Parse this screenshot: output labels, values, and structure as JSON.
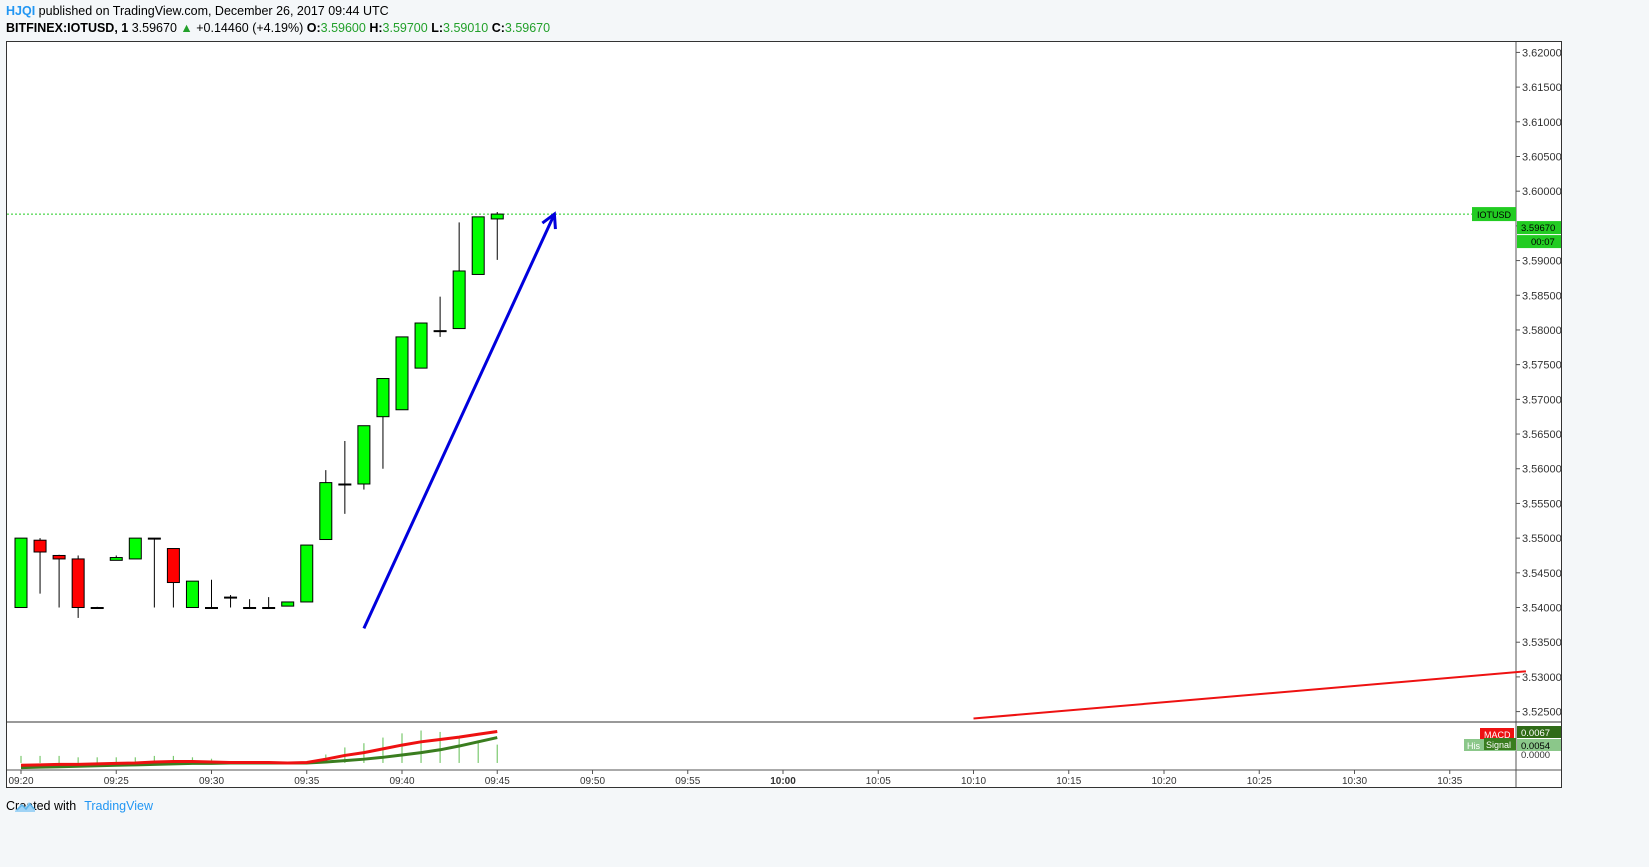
{
  "header": {
    "author": "HJQI",
    "published_text": " published on TradingView.com, December 26, 2017 09:44 UTC"
  },
  "info": {
    "symbol": "BITFINEX:IOTUSD, 1",
    "last": "3.59670",
    "arrow": "▲",
    "change": "+0.14460 (+4.19%)",
    "o_label": "O:",
    "o_value": "3.59600",
    "h_label": "H:",
    "h_value": "3.59700",
    "l_label": "L:",
    "l_value": "3.59010",
    "c_label": "C:",
    "c_value": "3.59670"
  },
  "footer": {
    "created_with": "Created with",
    "brand": "TradingView"
  },
  "colors": {
    "up": "#00ff00",
    "down": "#ff0000",
    "arrow": "#0000dd",
    "trend": "#ee1111",
    "macd": "#ee1111",
    "signal": "#3a7d1f",
    "hist": "#7bc96f",
    "price_line": "#22cc22"
  },
  "chart_data": {
    "type": "candlestick",
    "symbol": "BITFINEX:IOTUSD",
    "timeframe": "1",
    "x_ticks": [
      "09:20",
      "09:25",
      "09:30",
      "09:35",
      "09:40",
      "09:45",
      "09:50",
      "09:55",
      "10:00",
      "10:05",
      "10:10",
      "10:15",
      "10:20",
      "10:25",
      "10:30",
      "10:35"
    ],
    "x_range_minutes": [
      0,
      79
    ],
    "y_ticks": [
      "3.62000",
      "3.61500",
      "3.61000",
      "3.60500",
      "3.60000",
      "3.59500",
      "3.59000",
      "3.58500",
      "3.58000",
      "3.57500",
      "3.57000",
      "3.56500",
      "3.56000",
      "3.55500",
      "3.55000",
      "3.54500",
      "3.54000",
      "3.53500",
      "3.53000",
      "3.52500"
    ],
    "ylim": [
      3.5235,
      3.6215
    ],
    "candles": [
      {
        "t": 0,
        "o": 3.54,
        "h": 3.55,
        "l": 3.54,
        "c": 3.55
      },
      {
        "t": 1,
        "o": 3.5497,
        "h": 3.55,
        "l": 3.542,
        "c": 3.548
      },
      {
        "t": 2,
        "o": 3.5475,
        "h": 3.5476,
        "l": 3.54,
        "c": 3.547
      },
      {
        "t": 3,
        "o": 3.547,
        "h": 3.5475,
        "l": 3.5385,
        "c": 3.54
      },
      {
        "t": 4,
        "o": 3.54,
        "h": 3.5401,
        "l": 3.5399,
        "c": 3.54
      },
      {
        "t": 5,
        "o": 3.5468,
        "h": 3.5475,
        "l": 3.5468,
        "c": 3.5472
      },
      {
        "t": 6,
        "o": 3.547,
        "h": 3.55,
        "l": 3.547,
        "c": 3.55
      },
      {
        "t": 7,
        "o": 3.55,
        "h": 3.55,
        "l": 3.54,
        "c": 3.55
      },
      {
        "t": 8,
        "o": 3.5485,
        "h": 3.5485,
        "l": 3.54,
        "c": 3.5436
      },
      {
        "t": 9,
        "o": 3.54,
        "h": 3.5438,
        "l": 3.54,
        "c": 3.5438
      },
      {
        "t": 10,
        "o": 3.54,
        "h": 3.544,
        "l": 3.54,
        "c": 3.54
      },
      {
        "t": 11,
        "o": 3.5415,
        "h": 3.5418,
        "l": 3.54,
        "c": 3.5415
      },
      {
        "t": 12,
        "o": 3.54,
        "h": 3.5412,
        "l": 3.54,
        "c": 3.54
      },
      {
        "t": 13,
        "o": 3.54,
        "h": 3.5415,
        "l": 3.54,
        "c": 3.54
      },
      {
        "t": 14,
        "o": 3.5402,
        "h": 3.5408,
        "l": 3.5402,
        "c": 3.5408
      },
      {
        "t": 15,
        "o": 3.5408,
        "h": 3.549,
        "l": 3.5408,
        "c": 3.549
      },
      {
        "t": 16,
        "o": 3.5498,
        "h": 3.5598,
        "l": 3.5498,
        "c": 3.558
      },
      {
        "t": 17,
        "o": 3.5578,
        "h": 3.564,
        "l": 3.5535,
        "c": 3.5578
      },
      {
        "t": 18,
        "o": 3.5578,
        "h": 3.5662,
        "l": 3.557,
        "c": 3.5662
      },
      {
        "t": 19,
        "o": 3.5675,
        "h": 3.573,
        "l": 3.56,
        "c": 3.573
      },
      {
        "t": 20,
        "o": 3.5685,
        "h": 3.579,
        "l": 3.5685,
        "c": 3.579
      },
      {
        "t": 21,
        "o": 3.5745,
        "h": 3.581,
        "l": 3.5745,
        "c": 3.581
      },
      {
        "t": 22,
        "o": 3.5799,
        "h": 3.5848,
        "l": 3.579,
        "c": 3.5799
      },
      {
        "t": 23,
        "o": 3.5802,
        "h": 3.5955,
        "l": 3.5802,
        "c": 3.5885
      },
      {
        "t": 24,
        "o": 3.588,
        "h": 3.5963,
        "l": 3.588,
        "c": 3.5963
      },
      {
        "t": 25,
        "o": 3.596,
        "h": 3.597,
        "l": 3.5901,
        "c": 3.5967
      }
    ],
    "current_price": {
      "value": 3.5967,
      "label": "3.59670",
      "countdown": "00:07",
      "symbol_label": "IOTUSD"
    },
    "drawings": {
      "arrow": {
        "from": {
          "t": 18,
          "y": 3.537
        },
        "to": {
          "t": 28,
          "y": 3.5967
        }
      },
      "trend_line": {
        "from": {
          "t": 50,
          "y": 3.524
        },
        "to": {
          "t": 79,
          "y": 3.5308
        }
      }
    },
    "macd": {
      "label": "MACD",
      "signal_label": "Signal",
      "hist_label": "His",
      "macd_value": "0.0067",
      "signal_value": "0.0054",
      "zero_label": "0.0000",
      "ylim": [
        -0.0015,
        0.0085
      ],
      "macd": [
        -0.0005,
        -0.0004,
        -0.0003,
        -0.0003,
        -0.0002,
        -0.0001,
        0.0,
        0.0002,
        0.0003,
        0.0003,
        0.0002,
        0.0001,
        0.0001,
        0.0001,
        0.0,
        0.0001,
        0.0008,
        0.0016,
        0.0022,
        0.003,
        0.0038,
        0.0045,
        0.005,
        0.0055,
        0.0061,
        0.0067
      ],
      "signal": [
        -0.001,
        -0.0009,
        -0.0008,
        -0.0007,
        -0.0006,
        -0.0005,
        -0.0004,
        -0.0003,
        -0.0002,
        -0.0001,
        -0.0001,
        0.0,
        0.0,
        0.0,
        0.0,
        0.0,
        0.0002,
        0.0005,
        0.0008,
        0.0012,
        0.0017,
        0.0022,
        0.0028,
        0.0036,
        0.0045,
        0.0054
      ],
      "histogram": [
        0.0005,
        0.0005,
        0.0005,
        0.0004,
        0.0004,
        0.0004,
        0.0004,
        0.0005,
        0.0005,
        0.0004,
        0.0003,
        0.0001,
        0.0001,
        0.0001,
        0.0,
        0.0001,
        0.0006,
        0.0011,
        0.0014,
        0.0018,
        0.0021,
        0.0023,
        0.0022,
        0.0019,
        0.0016,
        0.0013
      ]
    }
  }
}
